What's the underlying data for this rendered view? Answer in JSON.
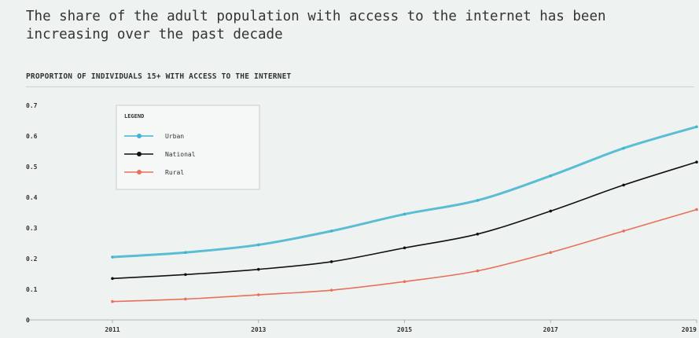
{
  "header": {
    "title": "The share of the adult population with access to the internet has been increasing over the past decade",
    "subtitle": "PROPORTION OF INDIVIDUALS 15+ WITH ACCESS TO THE INTERNET"
  },
  "chart_data": {
    "type": "line",
    "title": "PROPORTION OF INDIVIDUALS 15+ WITH ACCESS TO THE INTERNET",
    "xlabel": "",
    "ylabel": "",
    "x": [
      2011,
      2012,
      2013,
      2014,
      2015,
      2016,
      2017,
      2018,
      2019
    ],
    "xticks": [
      "2011",
      "2013",
      "2015",
      "2017",
      "2019"
    ],
    "xtick_values": [
      2011,
      2013,
      2015,
      2017,
      2019
    ],
    "xlim": [
      2011,
      2019
    ],
    "ylim": [
      0,
      0.7
    ],
    "yticks": [
      "0",
      "0.1",
      "0.2",
      "0.3",
      "0.4",
      "0.5",
      "0.6",
      "0.7"
    ],
    "ytick_values": [
      0,
      0.1,
      0.2,
      0.3,
      0.4,
      0.5,
      0.6,
      0.7
    ],
    "grid": false,
    "legend": {
      "title": "LEGEND",
      "placement": "top-left"
    },
    "series": [
      {
        "name": "Urban",
        "color": "#3fb3cf",
        "values": [
          0.205,
          0.22,
          0.245,
          0.29,
          0.345,
          0.39,
          0.47,
          0.56,
          0.63
        ]
      },
      {
        "name": "National",
        "color": "#111111",
        "values": [
          0.135,
          0.148,
          0.165,
          0.19,
          0.235,
          0.28,
          0.355,
          0.44,
          0.515
        ]
      },
      {
        "name": "Rural",
        "color": "#e8705a",
        "values": [
          0.06,
          0.068,
          0.082,
          0.097,
          0.125,
          0.16,
          0.22,
          0.29,
          0.36
        ]
      }
    ]
  }
}
